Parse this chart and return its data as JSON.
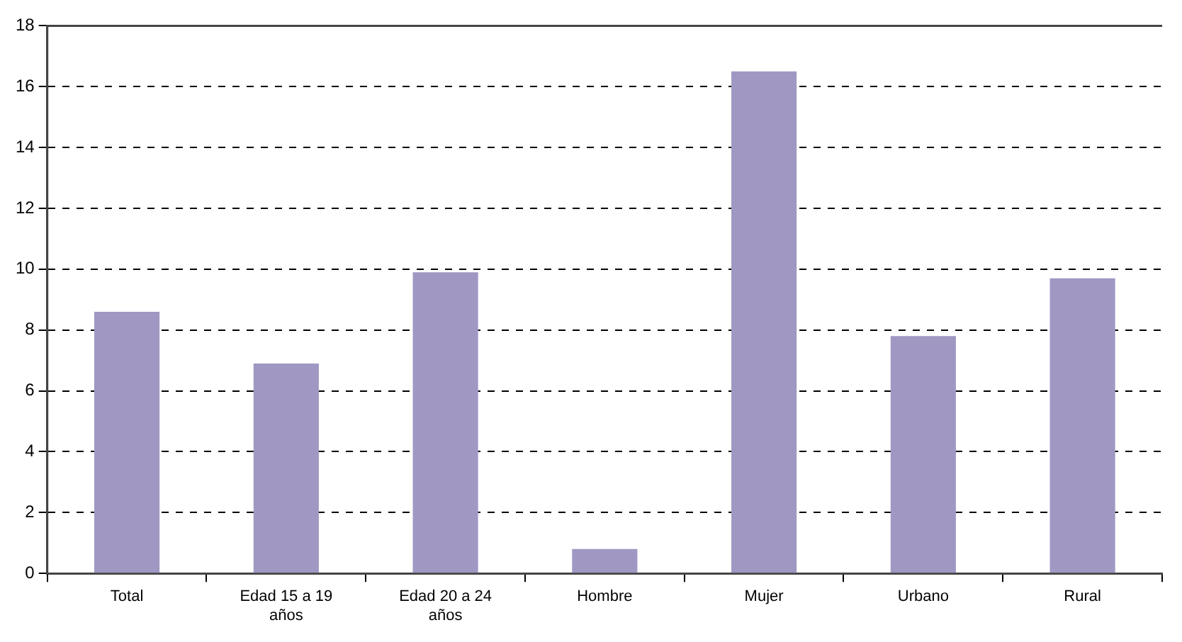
{
  "chart_data": {
    "type": "bar",
    "categories": [
      "Total",
      "Edad 15 a 19 años",
      "Edad 20 a 24 años",
      "Hombre",
      "Mujer",
      "Urbano",
      "Rural"
    ],
    "values": [
      8.6,
      6.9,
      9.9,
      0.8,
      16.5,
      7.8,
      9.7
    ],
    "color": "#a098c2",
    "ylim": [
      0,
      18
    ],
    "yticks": [
      0,
      2,
      4,
      6,
      8,
      10,
      12,
      14,
      16,
      18
    ],
    "grid": "y",
    "legend": false
  }
}
